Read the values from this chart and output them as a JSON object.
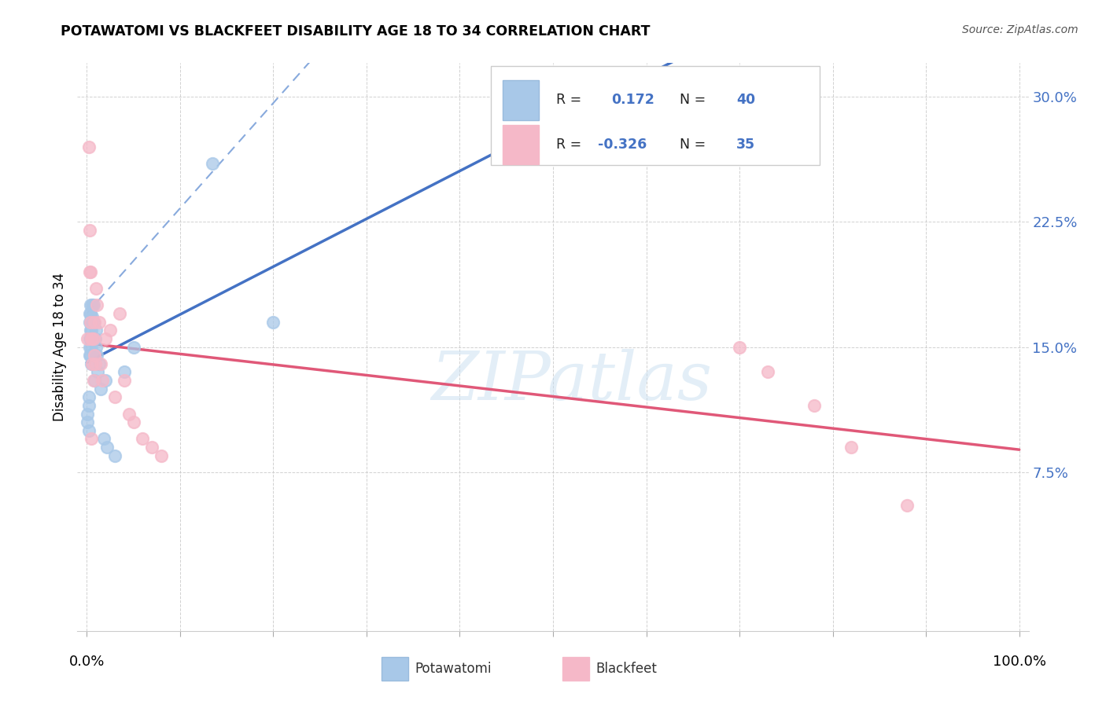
{
  "title": "POTAWATOMI VS BLACKFEET DISABILITY AGE 18 TO 34 CORRELATION CHART",
  "source": "Source: ZipAtlas.com",
  "ylabel": "Disability Age 18 to 34",
  "r_potawatomi": "0.172",
  "n_potawatomi": "40",
  "r_blackfeet": "-0.326",
  "n_blackfeet": "35",
  "potawatomi_x": [
    0.001,
    0.001,
    0.002,
    0.002,
    0.002,
    0.003,
    0.003,
    0.003,
    0.003,
    0.003,
    0.004,
    0.004,
    0.004,
    0.004,
    0.005,
    0.005,
    0.005,
    0.005,
    0.006,
    0.006,
    0.006,
    0.007,
    0.007,
    0.008,
    0.008,
    0.009,
    0.01,
    0.01,
    0.011,
    0.012,
    0.013,
    0.015,
    0.018,
    0.02,
    0.022,
    0.03,
    0.04,
    0.05,
    0.135,
    0.2
  ],
  "potawatomi_y": [
    0.11,
    0.105,
    0.12,
    0.115,
    0.1,
    0.17,
    0.165,
    0.155,
    0.15,
    0.145,
    0.175,
    0.17,
    0.16,
    0.145,
    0.165,
    0.16,
    0.15,
    0.14,
    0.175,
    0.168,
    0.155,
    0.175,
    0.165,
    0.145,
    0.13,
    0.155,
    0.16,
    0.15,
    0.145,
    0.135,
    0.14,
    0.125,
    0.095,
    0.13,
    0.09,
    0.085,
    0.135,
    0.15,
    0.26,
    0.165
  ],
  "blackfeet_x": [
    0.001,
    0.002,
    0.003,
    0.003,
    0.004,
    0.004,
    0.005,
    0.005,
    0.006,
    0.006,
    0.007,
    0.007,
    0.008,
    0.008,
    0.009,
    0.01,
    0.011,
    0.013,
    0.015,
    0.017,
    0.02,
    0.025,
    0.03,
    0.035,
    0.04,
    0.045,
    0.05,
    0.06,
    0.07,
    0.08,
    0.7,
    0.73,
    0.78,
    0.82,
    0.88
  ],
  "blackfeet_y": [
    0.155,
    0.27,
    0.22,
    0.195,
    0.195,
    0.165,
    0.155,
    0.095,
    0.155,
    0.14,
    0.155,
    0.13,
    0.165,
    0.145,
    0.14,
    0.185,
    0.175,
    0.165,
    0.14,
    0.13,
    0.155,
    0.16,
    0.12,
    0.17,
    0.13,
    0.11,
    0.105,
    0.095,
    0.09,
    0.085,
    0.15,
    0.135,
    0.115,
    0.09,
    0.055
  ],
  "color_potawatomi": "#a8c8e8",
  "color_blackfeet": "#f5b8c8",
  "line_color_potawatomi": "#4472c4",
  "line_color_blackfeet": "#e05878",
  "line_color_dashed": "#88aadd",
  "background_color": "#ffffff",
  "grid_color": "#cccccc",
  "tick_color": "#4472c4",
  "text_color_dark": "#222222",
  "watermark_text": "ZIPatlas",
  "watermark_color": "#c8dff0",
  "xmin": 0.0,
  "xmax": 1.0,
  "ymin": 0.0,
  "ymax": 0.32,
  "ytick_vals": [
    0.075,
    0.15,
    0.225,
    0.3
  ],
  "ytick_labels": [
    "7.5%",
    "15.0%",
    "22.5%",
    "30.0%"
  ],
  "xtick_vals": [
    0.0,
    0.1,
    0.2,
    0.3,
    0.4,
    0.5,
    0.6,
    0.7,
    0.8,
    0.9,
    1.0
  ],
  "xlabel_show": [
    "0.0%",
    "100.0%"
  ]
}
